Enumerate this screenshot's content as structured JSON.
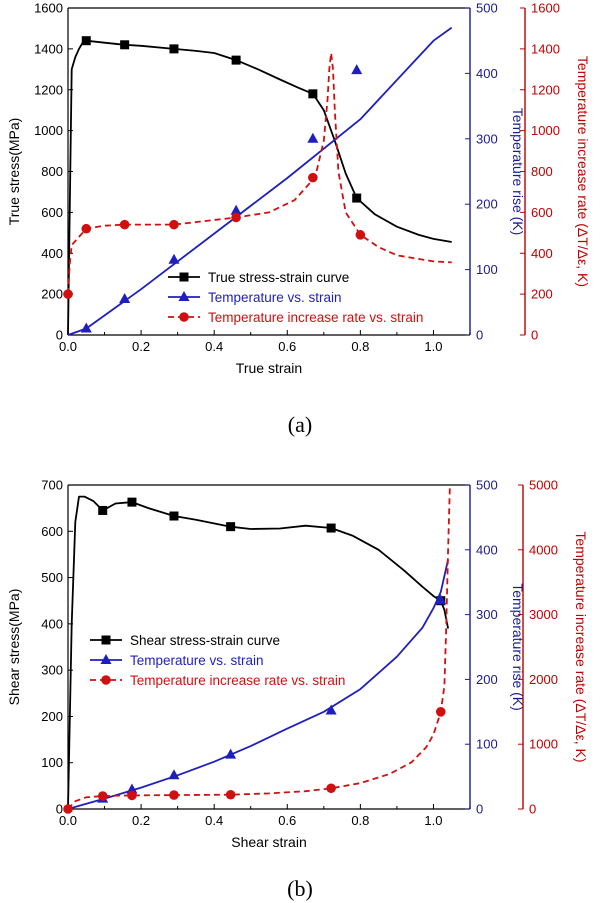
{
  "panels": [
    {
      "caption": "(a)",
      "chart_data": {
        "type": "line",
        "xlabel": "True strain",
        "ylabel_left": "True stress(MPa)",
        "ylabel_right1": "Temperature rise (K)",
        "ylabel_right2": "Temperature increase rate (ΔT/Δε, K)",
        "xlim": [
          0,
          1.1
        ],
        "xticks": [
          "0.0",
          "0.2",
          "0.4",
          "0.6",
          "0.8",
          "1.0"
        ],
        "axes": {
          "left": {
            "ylim": [
              0,
              1600
            ],
            "ticks": [
              "0",
              "200",
              "400",
              "600",
              "800",
              "1000",
              "1200",
              "1400",
              "1600"
            ],
            "color": "#000000"
          },
          "right1": {
            "ylim": [
              0,
              500
            ],
            "ticks": [
              "0",
              "100",
              "200",
              "300",
              "400",
              "500"
            ],
            "color": "#1b1b8c"
          },
          "right2": {
            "ylim": [
              0,
              1600
            ],
            "ticks": [
              "0",
              "200",
              "400",
              "600",
              "800",
              "1000",
              "1200",
              "1400",
              "1600"
            ],
            "color": "#c00000"
          }
        },
        "legend_position": "bottom-center",
        "series": [
          {
            "name": "True stress-strain curve",
            "axis": "left",
            "color": "#000000",
            "marker": "square",
            "dash": "",
            "x": [
              0,
              0.01,
              0.02,
              0.03,
              0.04,
              0.05,
              0.1,
              0.155,
              0.2,
              0.29,
              0.35,
              0.4,
              0.46,
              0.52,
              0.58,
              0.63,
              0.67,
              0.7,
              0.73,
              0.76,
              0.79,
              0.84,
              0.9,
              0.96,
              1.0,
              1.05
            ],
            "y": [
              0,
              1300,
              1360,
              1400,
              1430,
              1440,
              1430,
              1420,
              1415,
              1400,
              1390,
              1380,
              1345,
              1300,
              1250,
              1210,
              1180,
              1100,
              950,
              790,
              670,
              590,
              530,
              490,
              470,
              455
            ],
            "markers_x": [
              0.05,
              0.155,
              0.29,
              0.46,
              0.67,
              0.79
            ],
            "markers_y": [
              1440,
              1420,
              1400,
              1345,
              1180,
              670
            ]
          },
          {
            "name": "Temperature vs. strain",
            "axis": "right1",
            "color": "#1f1fbf",
            "marker": "triangle",
            "dash": "",
            "x": [
              0,
              0.05,
              0.2,
              0.4,
              0.6,
              0.8,
              1.0,
              1.05
            ],
            "y": [
              0,
              10,
              70,
              155,
              240,
              330,
              450,
              470
            ],
            "markers_x": [
              0.05,
              0.155,
              0.29,
              0.46,
              0.67,
              0.79
            ],
            "markers_y": [
              10,
              55,
              115,
              190,
              300,
              405
            ]
          },
          {
            "name": "Temperature increase rate vs. strain",
            "axis": "right2",
            "color": "#d01010",
            "marker": "circle",
            "dash": "6,4",
            "x": [
              0,
              0.005,
              0.01,
              0.02,
              0.03,
              0.05,
              0.1,
              0.155,
              0.29,
              0.46,
              0.55,
              0.62,
              0.66,
              0.68,
              0.7,
              0.71,
              0.715,
              0.72,
              0.725,
              0.73,
              0.74,
              0.76,
              0.8,
              0.85,
              0.9,
              1.0,
              1.05
            ],
            "y": [
              200,
              350,
              440,
              460,
              480,
              520,
              535,
              540,
              540,
              575,
              600,
              660,
              740,
              800,
              950,
              1150,
              1300,
              1380,
              1300,
              1100,
              800,
              600,
              490,
              430,
              390,
              360,
              355
            ],
            "markers_x": [
              0.0,
              0.05,
              0.155,
              0.29,
              0.46,
              0.67,
              0.8
            ],
            "markers_y": [
              200,
              520,
              540,
              540,
              575,
              770,
              490
            ]
          }
        ]
      }
    },
    {
      "caption": "(b)",
      "chart_data": {
        "type": "line",
        "xlabel": "Shear strain",
        "ylabel_left": "Shear stress(MPa)",
        "ylabel_right1": "Temperature rise (K)",
        "ylabel_right2": "Temperature increase rate (ΔT/Δε, K)",
        "xlim": [
          0,
          1.1
        ],
        "xticks": [
          "0.0",
          "0.2",
          "0.4",
          "0.6",
          "0.8",
          "1.0"
        ],
        "axes": {
          "left": {
            "ylim": [
              0,
              700
            ],
            "ticks": [
              "0",
              "100",
              "200",
              "300",
              "400",
              "500",
              "600",
              "700"
            ],
            "color": "#000000"
          },
          "right1": {
            "ylim": [
              0,
              500
            ],
            "ticks": [
              "0",
              "100",
              "200",
              "300",
              "400",
              "500"
            ],
            "color": "#1b1b8c"
          },
          "right2": {
            "ylim": [
              0,
              5000
            ],
            "ticks": [
              "0",
              "1000",
              "2000",
              "3000",
              "4000",
              "5000"
            ],
            "color": "#c00000"
          }
        },
        "legend_position": "center-left",
        "series": [
          {
            "name": "Shear stress-strain curve",
            "axis": "left",
            "color": "#000000",
            "marker": "square",
            "dash": "",
            "x": [
              0,
              0.01,
              0.02,
              0.03,
              0.045,
              0.07,
              0.095,
              0.13,
              0.175,
              0.22,
              0.29,
              0.35,
              0.445,
              0.5,
              0.58,
              0.65,
              0.72,
              0.78,
              0.85,
              0.92,
              0.97,
              1.0,
              1.02,
              1.03,
              1.04
            ],
            "y": [
              0,
              400,
              620,
              675,
              675,
              665,
              645,
              660,
              663,
              650,
              633,
              625,
              610,
              605,
              606,
              612,
              607,
              590,
              560,
              515,
              480,
              460,
              450,
              430,
              390
            ],
            "markers_x": [
              0.095,
              0.175,
              0.29,
              0.445,
              0.72,
              1.02
            ],
            "markers_y": [
              645,
              663,
              633,
              610,
              607,
              450
            ]
          },
          {
            "name": "Temperature vs. strain",
            "axis": "right1",
            "color": "#1f1fbf",
            "marker": "triangle",
            "dash": "",
            "x": [
              0,
              0.05,
              0.1,
              0.2,
              0.3,
              0.4,
              0.5,
              0.6,
              0.7,
              0.8,
              0.9,
              0.97,
              1.0,
              1.02,
              1.04
            ],
            "y": [
              0,
              8,
              16,
              33,
              52,
              73,
              97,
              124,
              150,
              185,
              235,
              280,
              310,
              335,
              385
            ],
            "markers_x": [
              0.095,
              0.175,
              0.29,
              0.445,
              0.72,
              1.02
            ],
            "markers_y": [
              16,
              30,
              52,
              84,
              152,
              322
            ]
          },
          {
            "name": "Temperature increase rate vs. strain",
            "axis": "right2",
            "color": "#d01010",
            "marker": "circle",
            "dash": "6,4",
            "x": [
              0,
              0.02,
              0.05,
              0.095,
              0.175,
              0.29,
              0.445,
              0.55,
              0.65,
              0.72,
              0.8,
              0.88,
              0.94,
              0.98,
              1.0,
              1.02,
              1.03,
              1.035,
              1.04,
              1.045
            ],
            "y": [
              0,
              120,
              180,
              200,
              210,
              215,
              220,
              240,
              275,
              320,
              400,
              540,
              720,
              950,
              1150,
              1500,
              1900,
              2800,
              4000,
              5000
            ],
            "markers_x": [
              0.0,
              0.095,
              0.175,
              0.29,
              0.445,
              0.72,
              1.02
            ],
            "markers_y": [
              0,
              200,
              210,
              215,
              220,
              320,
              1500
            ]
          }
        ]
      }
    }
  ]
}
